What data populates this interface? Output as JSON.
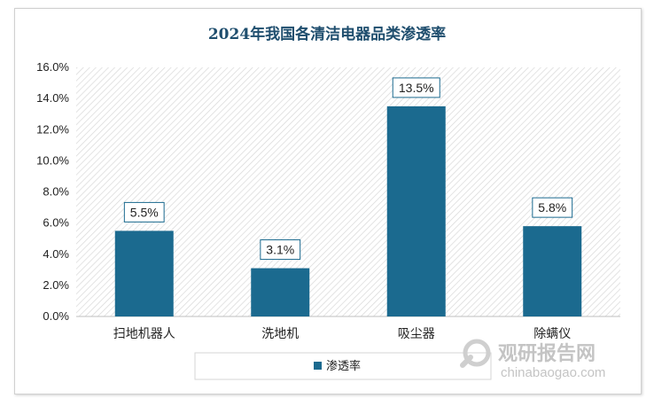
{
  "chart_data": {
    "type": "bar",
    "title": "2024年我国各清洁电器品类渗透率",
    "categories": [
      "扫地机器人",
      "洗地机",
      "吸尘器",
      "除螨仪"
    ],
    "series": [
      {
        "name": "渗透率",
        "values": [
          5.5,
          3.1,
          13.5,
          5.8
        ],
        "labels": [
          "5.5%",
          "3.1%",
          "13.5%",
          "5.8%"
        ]
      }
    ],
    "ylim": [
      0,
      16
    ],
    "yticks": [
      "0.0%",
      "2.0%",
      "4.0%",
      "6.0%",
      "8.0%",
      "10.0%",
      "12.0%",
      "14.0%",
      "16.0%"
    ],
    "xlabel": "",
    "ylabel": "",
    "grid": false,
    "legend_position": "bottom",
    "bar_color": "#1b6a8f"
  },
  "watermark": {
    "cn": "观研报告网",
    "en": "chinabaogao.com"
  }
}
